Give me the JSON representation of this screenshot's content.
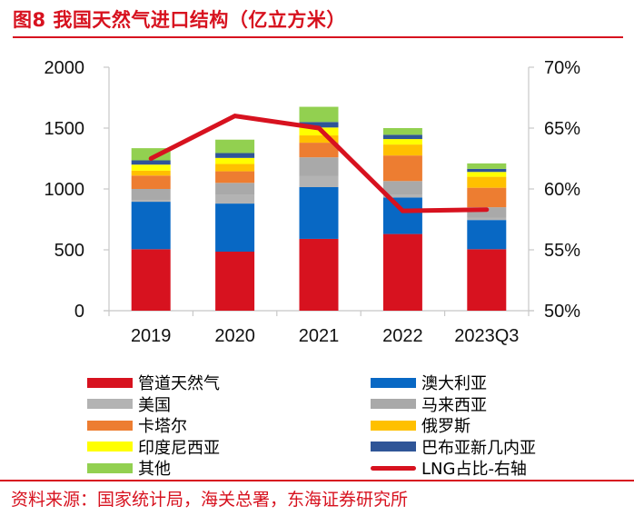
{
  "header": {
    "title": "图8  我国天然气进口结构（亿立方米）"
  },
  "footer": {
    "source": "资料来源：国家统计局，海关总署，东海证券研究所"
  },
  "chart_data": {
    "type": "bar",
    "stacked": true,
    "title": "图8 我国天然气进口结构（亿立方米）",
    "categories": [
      "2019",
      "2020",
      "2021",
      "2022",
      "2023Q3"
    ],
    "ylabel": "亿立方米",
    "ylim": [
      0,
      2000
    ],
    "yticks": [
      "0",
      "500",
      "1000",
      "1500",
      "2000"
    ],
    "y2lim": [
      0.5,
      0.7
    ],
    "y2ticks": [
      "50%",
      "55%",
      "60%",
      "65%",
      "70%"
    ],
    "grid": false,
    "legend_position": "bottom",
    "series": [
      {
        "name": "管道天然气",
        "color": "#d7121f",
        "values": [
          505,
          485,
          590,
          630,
          505
        ]
      },
      {
        "name": "澳大利亚",
        "color": "#0868c4",
        "values": [
          390,
          395,
          425,
          300,
          240
        ]
      },
      {
        "name": "美国",
        "color": "#b3b3b3",
        "values": [
          15,
          70,
          90,
          25,
          20
        ]
      },
      {
        "name": "马来西亚",
        "color": "#a9a9a9",
        "values": [
          90,
          100,
          155,
          110,
          85
        ]
      },
      {
        "name": "卡塔尔",
        "color": "#ed7d31",
        "values": [
          110,
          95,
          120,
          210,
          160
        ]
      },
      {
        "name": "俄罗斯",
        "color": "#ffc000",
        "values": [
          40,
          60,
          60,
          90,
          90
        ]
      },
      {
        "name": "印度尼西亚",
        "color": "#ffff00",
        "values": [
          50,
          50,
          65,
          45,
          40
        ]
      },
      {
        "name": "巴布亚新几内亚",
        "color": "#2f5597",
        "values": [
          35,
          40,
          45,
          35,
          25
        ]
      },
      {
        "name": "其他",
        "color": "#92d050",
        "values": [
          100,
          110,
          125,
          55,
          45
        ]
      }
    ],
    "line_series": {
      "name": "LNG占比-右轴",
      "color": "#d7121f",
      "axis": "right",
      "values": [
        0.625,
        0.66,
        0.65,
        0.582,
        0.583
      ]
    },
    "legend": [
      {
        "label": "管道天然气",
        "color": "#d7121f",
        "kind": "bar"
      },
      {
        "label": "澳大利亚",
        "color": "#0868c4",
        "kind": "bar"
      },
      {
        "label": "美国",
        "color": "#b3b3b3",
        "kind": "bar"
      },
      {
        "label": "马来西亚",
        "color": "#a9a9a9",
        "kind": "bar"
      },
      {
        "label": "卡塔尔",
        "color": "#ed7d31",
        "kind": "bar"
      },
      {
        "label": "俄罗斯",
        "color": "#ffc000",
        "kind": "bar"
      },
      {
        "label": "印度尼西亚",
        "color": "#ffff00",
        "kind": "bar"
      },
      {
        "label": "巴布亚新几内亚",
        "color": "#2f5597",
        "kind": "bar"
      },
      {
        "label": "其他",
        "color": "#92d050",
        "kind": "bar"
      },
      {
        "label": "LNG占比-右轴",
        "color": "#d7121f",
        "kind": "line"
      }
    ]
  }
}
